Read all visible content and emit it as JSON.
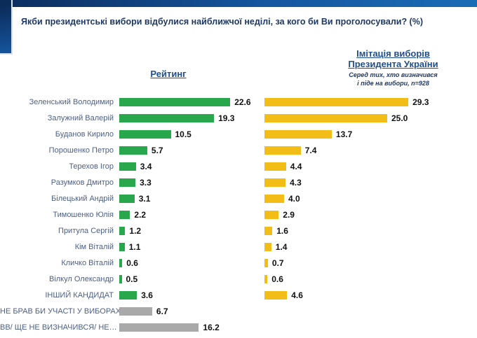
{
  "title": "Якби президентські вибори відбулися найближчої неділі, за кого би Ви проголосували? (%)",
  "left_column": {
    "header": "Рейтинг"
  },
  "right_column": {
    "header_line1": "Імітація виборів",
    "header_line2": "Президента України",
    "subtitle_line1": "Серед тих, хто визначився",
    "subtitle_line2": "і піде на вибори, n=928"
  },
  "colors": {
    "green": "#28a74d",
    "yellow": "#f2bd16",
    "gray": "#a9a9a9",
    "label_text": "#4d5f85",
    "title_text": "#1f3864",
    "header_text": "#1f4e8c",
    "value_text": "#111111"
  },
  "rows": [
    {
      "label": "Зеленський Володимир",
      "rating": 22.6,
      "rating_text": "22.6",
      "imitation": 29.3,
      "imitation_text": "29.3",
      "bar_color": "green"
    },
    {
      "label": "Залужний Валерій",
      "rating": 19.3,
      "rating_text": "19.3",
      "imitation": 25.0,
      "imitation_text": "25.0",
      "bar_color": "green"
    },
    {
      "label": "Буданов Кирило",
      "rating": 10.5,
      "rating_text": "10.5",
      "imitation": 13.7,
      "imitation_text": "13.7",
      "bar_color": "green"
    },
    {
      "label": "Порошенко Петро",
      "rating": 5.7,
      "rating_text": "5.7",
      "imitation": 7.4,
      "imitation_text": "7.4",
      "bar_color": "green"
    },
    {
      "label": "Терехов Ігор",
      "rating": 3.4,
      "rating_text": "3.4",
      "imitation": 4.4,
      "imitation_text": "4.4",
      "bar_color": "green"
    },
    {
      "label": "Разумков Дмитро",
      "rating": 3.3,
      "rating_text": "3.3",
      "imitation": 4.3,
      "imitation_text": "4.3",
      "bar_color": "green"
    },
    {
      "label": "Білецький Андрій",
      "rating": 3.1,
      "rating_text": "3.1",
      "imitation": 4.0,
      "imitation_text": "4.0",
      "bar_color": "green"
    },
    {
      "label": "Тимошенко Юлія",
      "rating": 2.2,
      "rating_text": "2.2",
      "imitation": 2.9,
      "imitation_text": "2.9",
      "bar_color": "green"
    },
    {
      "label": "Притула Сергій",
      "rating": 1.2,
      "rating_text": "1.2",
      "imitation": 1.6,
      "imitation_text": "1.6",
      "bar_color": "green"
    },
    {
      "label": "Кім Віталій",
      "rating": 1.1,
      "rating_text": "1.1",
      "imitation": 1.4,
      "imitation_text": "1.4",
      "bar_color": "green"
    },
    {
      "label": "Кличко Віталій",
      "rating": 0.6,
      "rating_text": "0.6",
      "imitation": 0.7,
      "imitation_text": "0.7",
      "bar_color": "green"
    },
    {
      "label": "Вілкул Олександр",
      "rating": 0.5,
      "rating_text": "0.5",
      "imitation": 0.6,
      "imitation_text": "0.6",
      "bar_color": "green"
    },
    {
      "label": "ІНШИЙ КАНДИДАТ",
      "rating": 3.6,
      "rating_text": "3.6",
      "imitation": 4.6,
      "imitation_text": "4.6",
      "bar_color": "green"
    },
    {
      "label": "НЕ БРАВ БИ УЧАСТІ У ВИБОРАХ",
      "rating": 6.7,
      "rating_text": "6.7",
      "imitation": null,
      "imitation_text": null,
      "bar_color": "gray"
    },
    {
      "label": "ВВ/ ЩЕ НЕ ВИЗНАЧИВСЯ/ НЕ…",
      "rating": 16.2,
      "rating_text": "16.2",
      "imitation": null,
      "imitation_text": null,
      "bar_color": "gray"
    }
  ],
  "chart_data": {
    "type": "bar",
    "orientation": "horizontal",
    "title": "Якби президентські вибори відбулися найближчої неділі, за кого би Ви проголосували? (%)",
    "categories": [
      "Зеленський Володимир",
      "Залужний Валерій",
      "Буданов Кирило",
      "Порошенко Петро",
      "Терехов Ігор",
      "Разумков Дмитро",
      "Білецький Андрій",
      "Тимошенко Юлія",
      "Притула Сергій",
      "Кім Віталій",
      "Кличко Віталій",
      "Вілкул Олександр",
      "ІНШИЙ КАНДИДАТ",
      "НЕ БРАВ БИ УЧАСТІ У ВИБОРАХ",
      "ВВ/ ЩЕ НЕ ВИЗНАЧИВСЯ/ НЕ…"
    ],
    "series": [
      {
        "name": "Рейтинг",
        "color": "#28a74d",
        "values": [
          22.6,
          19.3,
          10.5,
          5.7,
          3.4,
          3.3,
          3.1,
          2.2,
          1.2,
          1.1,
          0.6,
          0.5,
          3.6,
          6.7,
          16.2
        ]
      },
      {
        "name": "Імітація виборів Президента України (Серед тих, хто визначився і піде на вибори, n=928)",
        "color": "#f2bd16",
        "values": [
          29.3,
          25.0,
          13.7,
          7.4,
          4.4,
          4.3,
          4.0,
          2.9,
          1.6,
          1.4,
          0.7,
          0.6,
          4.6,
          null,
          null
        ]
      }
    ],
    "notes": "Останні дві категорії показані сірими барами лише у серії Рейтинг",
    "xlim": [
      0,
      30
    ],
    "grid": false,
    "data_labels": true,
    "legend_position": "column-headers"
  }
}
